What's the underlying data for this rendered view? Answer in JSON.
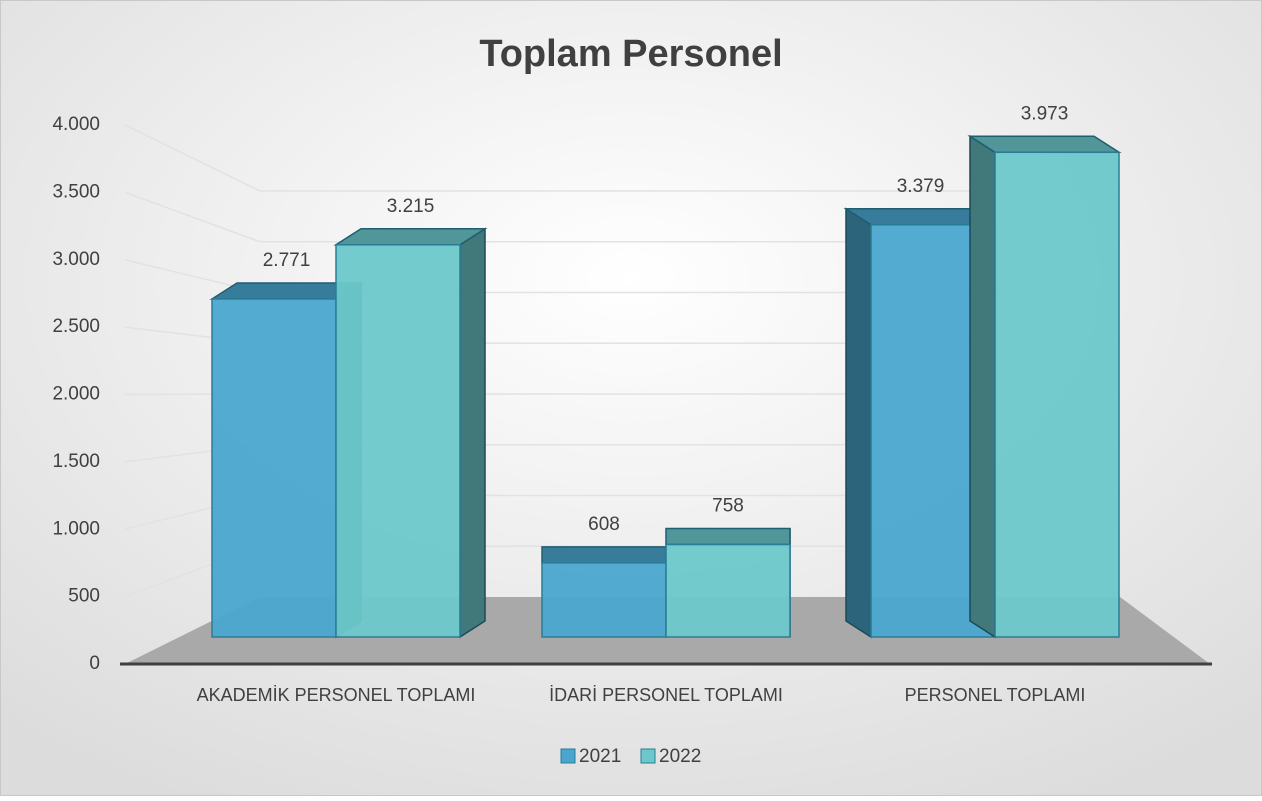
{
  "chart_data": {
    "type": "bar3d",
    "title": "Toplam Personel",
    "categories": [
      "AKADEMİK PERSONEL TOPLAMI",
      "İDARİ PERSONEL TOPLAMI",
      "PERSONEL TOPLAMI"
    ],
    "series": [
      {
        "name": "2021",
        "color": "#4aa6cf",
        "values": [
          2771,
          608,
          3379
        ],
        "value_labels": [
          "2.771",
          "608",
          "3.379"
        ]
      },
      {
        "name": "2022",
        "color": "#6cc8ca",
        "values": [
          3215,
          758,
          3973
        ],
        "value_labels": [
          "3.215",
          "758",
          "3.973"
        ]
      }
    ],
    "ylim": [
      0,
      4000
    ],
    "yticks": [
      0,
      500,
      {
        "value": 1000,
        "label": "1.000"
      },
      {
        "value": 1500,
        "label": "1.500"
      },
      {
        "value": 2000,
        "label": "2.000"
      },
      {
        "value": 2500,
        "label": "2.500"
      },
      {
        "value": 3000,
        "label": "3.000"
      },
      {
        "value": 3500,
        "label": "3.500"
      },
      {
        "value": 4000,
        "label": "4.000"
      }
    ],
    "grid": true,
    "legend": "bottom"
  }
}
